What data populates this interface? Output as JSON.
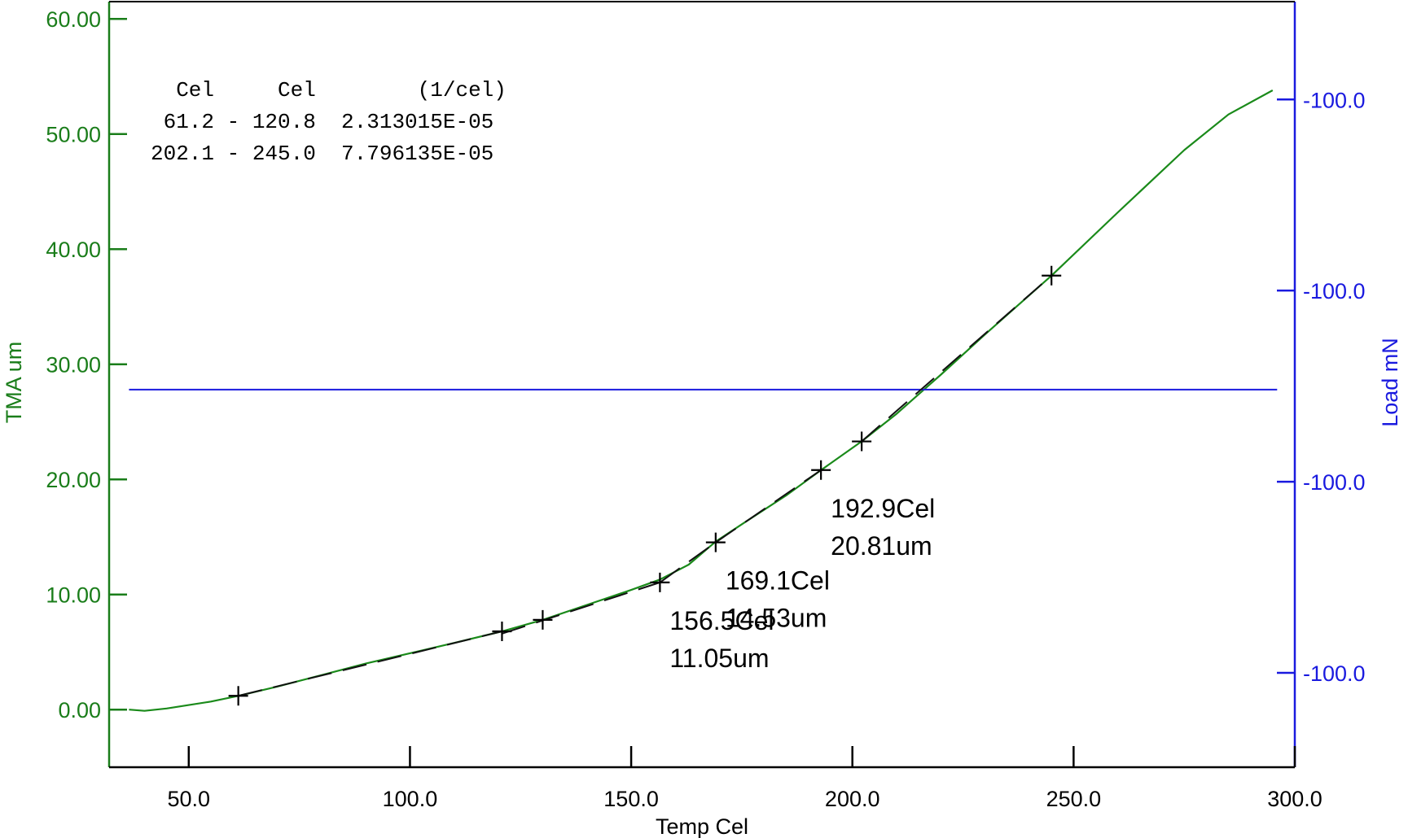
{
  "chart_data": {
    "type": "line",
    "xlabel": "Temp Cel",
    "ylabel_left": "TMA um",
    "ylabel_right": "Load mN",
    "xlim": [
      32,
      300
    ],
    "ylim_left": [
      -5,
      61.5
    ],
    "x_ticks": [
      50,
      100,
      150,
      200,
      250,
      300
    ],
    "x_tick_labels": [
      "50.0",
      "100.0",
      "150.0",
      "200.0",
      "250.0",
      "300.0"
    ],
    "y_left_ticks": [
      0,
      10,
      20,
      30,
      40,
      50,
      60
    ],
    "y_left_tick_labels": [
      "0.00",
      "10.00",
      "20.00",
      "30.00",
      "40.00",
      "50.00",
      "60.00"
    ],
    "y_right_tick_values_left_units": [
      53.0,
      36.4,
      19.8,
      3.2
    ],
    "y_right_tick_labels": [
      "-100.0",
      "-100.0",
      "-100.0",
      "-100.0"
    ],
    "colors": {
      "tma": "#1a8a1a",
      "load": "#1a1adf",
      "fit": "#111111",
      "left_axis": "#1a7d1a",
      "right_axis": "#1a1adf"
    },
    "series": [
      {
        "axis": "left",
        "color": "#1a8a1a",
        "x": [
          36.5,
          40,
          45,
          50,
          55,
          61.2,
          70,
          80,
          90,
          100,
          110,
          120.8,
          130,
          140,
          150,
          156.5,
          163,
          169.1,
          175,
          185,
          192.9,
          202.1,
          210,
          220,
          230,
          245,
          260,
          275,
          285,
          295
        ],
        "y": [
          0.0,
          -0.1,
          0.1,
          0.4,
          0.7,
          1.2,
          2.0,
          3.0,
          4.0,
          4.9,
          5.8,
          6.8,
          7.8,
          9.1,
          10.4,
          11.3,
          12.6,
          14.6,
          16.1,
          18.6,
          20.8,
          23.3,
          25.7,
          29.1,
          32.6,
          37.7,
          43.2,
          48.6,
          51.7,
          53.8
        ]
      },
      {
        "axis": "left",
        "color": "#1a1adf",
        "x": [
          36.5,
          296
        ],
        "y": [
          27.8,
          27.8
        ]
      }
    ],
    "fit_lines": [
      {
        "x": [
          61.2,
          120.8
        ],
        "y": [
          1.2,
          6.8
        ]
      },
      {
        "x": [
          120.8,
          156.5
        ],
        "y": [
          6.6,
          11.05
        ]
      },
      {
        "x": [
          156.5,
          169.1
        ],
        "y": [
          11.05,
          14.53
        ]
      },
      {
        "x": [
          169.1,
          192.9
        ],
        "y": [
          14.53,
          20.81
        ]
      },
      {
        "x": [
          202.1,
          245.0
        ],
        "y": [
          23.3,
          37.7
        ]
      }
    ],
    "markers": [
      {
        "x": 61.2,
        "y": 1.2
      },
      {
        "x": 120.8,
        "y": 6.8
      },
      {
        "x": 130.0,
        "y": 7.8
      },
      {
        "x": 156.5,
        "y": 11.05
      },
      {
        "x": 169.1,
        "y": 14.53
      },
      {
        "x": 192.9,
        "y": 20.81
      },
      {
        "x": 202.1,
        "y": 23.3
      },
      {
        "x": 245.0,
        "y": 37.7
      }
    ],
    "annotations": [
      {
        "x": 156.5,
        "y": 11.05,
        "lines": [
          "156.5Cel",
          "11.05um"
        ]
      },
      {
        "x": 169.1,
        "y": 14.53,
        "lines": [
          "169.1Cel",
          "14.53um"
        ]
      },
      {
        "x": 192.9,
        "y": 20.81,
        "lines": [
          "192.9Cel",
          "20.81um"
        ]
      }
    ],
    "cte_table": {
      "header": "  Cel     Cel        (1/cel)",
      "rows": [
        " 61.2 - 120.8  2.313015E-05",
        "202.1 - 245.0  7.796135E-05"
      ]
    },
    "grid": false,
    "legend": "none"
  }
}
